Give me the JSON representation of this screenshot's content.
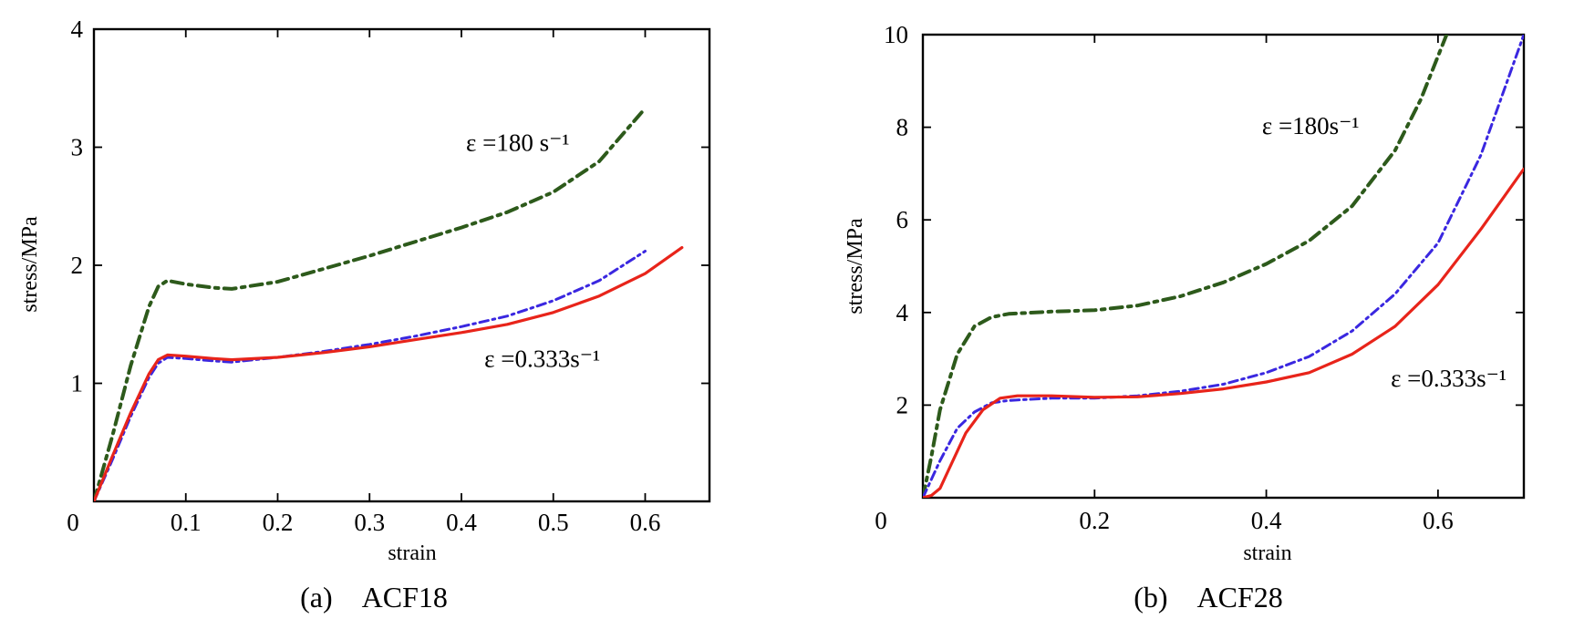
{
  "chart_data": [
    {
      "type": "line",
      "caption": "(a)　ACF18",
      "xlabel": "strain",
      "ylabel": "stress/MPa",
      "xlim": [
        0,
        0.67
      ],
      "ylim": [
        0,
        4
      ],
      "xticks": [
        0.1,
        0.2,
        0.3,
        0.4,
        0.5,
        0.6
      ],
      "xtick_labels": [
        "0.1",
        "0.2",
        "0.3",
        "0.4",
        "0.5",
        "0.6"
      ],
      "yticks": [
        1,
        2,
        3,
        4
      ],
      "ytick_labels": [
        "1",
        "2",
        "3",
        "4"
      ],
      "origin_label": "0",
      "grid": false,
      "annotations": [
        {
          "text": "ε =180 s⁻¹",
          "x": 0.405,
          "y": 2.97
        },
        {
          "text": "ε =0.333s⁻¹",
          "x": 0.425,
          "y": 1.14
        }
      ],
      "series": [
        {
          "color": "#2d5a1b",
          "dash": "dashdot",
          "width": 4,
          "points": [
            [
              0,
              0
            ],
            [
              0.02,
              0.55
            ],
            [
              0.04,
              1.15
            ],
            [
              0.06,
              1.65
            ],
            [
              0.07,
              1.82
            ],
            [
              0.08,
              1.87
            ],
            [
              0.1,
              1.84
            ],
            [
              0.13,
              1.81
            ],
            [
              0.15,
              1.8
            ],
            [
              0.2,
              1.86
            ],
            [
              0.25,
              1.97
            ],
            [
              0.3,
              2.08
            ],
            [
              0.35,
              2.2
            ],
            [
              0.4,
              2.32
            ],
            [
              0.45,
              2.45
            ],
            [
              0.5,
              2.62
            ],
            [
              0.55,
              2.88
            ],
            [
              0.6,
              3.33
            ]
          ]
        },
        {
          "color": "#3a27e0",
          "dash": "dashdot",
          "width": 3,
          "points": [
            [
              0,
              0
            ],
            [
              0.02,
              0.35
            ],
            [
              0.04,
              0.72
            ],
            [
              0.06,
              1.05
            ],
            [
              0.07,
              1.17
            ],
            [
              0.08,
              1.22
            ],
            [
              0.1,
              1.21
            ],
            [
              0.13,
              1.19
            ],
            [
              0.15,
              1.18
            ],
            [
              0.2,
              1.22
            ],
            [
              0.25,
              1.27
            ],
            [
              0.3,
              1.33
            ],
            [
              0.35,
              1.4
            ],
            [
              0.4,
              1.48
            ],
            [
              0.45,
              1.57
            ],
            [
              0.5,
              1.7
            ],
            [
              0.55,
              1.87
            ],
            [
              0.6,
              2.12
            ]
          ]
        },
        {
          "color": "#e8241a",
          "dash": "solid",
          "width": 3.2,
          "points": [
            [
              0,
              0
            ],
            [
              0.02,
              0.38
            ],
            [
              0.04,
              0.75
            ],
            [
              0.06,
              1.08
            ],
            [
              0.07,
              1.2
            ],
            [
              0.08,
              1.24
            ],
            [
              0.1,
              1.23
            ],
            [
              0.13,
              1.21
            ],
            [
              0.15,
              1.2
            ],
            [
              0.2,
              1.22
            ],
            [
              0.25,
              1.26
            ],
            [
              0.3,
              1.31
            ],
            [
              0.35,
              1.37
            ],
            [
              0.4,
              1.43
            ],
            [
              0.45,
              1.5
            ],
            [
              0.5,
              1.6
            ],
            [
              0.55,
              1.74
            ],
            [
              0.6,
              1.93
            ],
            [
              0.64,
              2.15
            ]
          ]
        }
      ]
    },
    {
      "type": "line",
      "caption": "(b)　ACF28",
      "xlabel": "strain",
      "ylabel": "stress/MPa",
      "xlim": [
        0,
        0.7
      ],
      "ylim": [
        0,
        10
      ],
      "xticks": [
        0.2,
        0.4,
        0.6
      ],
      "xtick_labels": [
        "0.2",
        "0.4",
        "0.6"
      ],
      "yticks": [
        2,
        4,
        6,
        8,
        10
      ],
      "ytick_labels": [
        "2",
        "4",
        "6",
        "8",
        "10"
      ],
      "origin_label": "0",
      "grid": false,
      "annotations": [
        {
          "text": "ε =180s⁻¹",
          "x": 0.395,
          "y": 7.85
        },
        {
          "text": "ε =0.333s⁻¹",
          "x": 0.545,
          "y": 2.4
        }
      ],
      "series": [
        {
          "color": "#2d5a1b",
          "dash": "dashdot",
          "width": 4,
          "points": [
            [
              0,
              0
            ],
            [
              0.01,
              0.9
            ],
            [
              0.02,
              1.9
            ],
            [
              0.04,
              3.1
            ],
            [
              0.06,
              3.7
            ],
            [
              0.08,
              3.9
            ],
            [
              0.1,
              3.97
            ],
            [
              0.15,
              4.02
            ],
            [
              0.2,
              4.05
            ],
            [
              0.25,
              4.15
            ],
            [
              0.3,
              4.35
            ],
            [
              0.35,
              4.65
            ],
            [
              0.4,
              5.05
            ],
            [
              0.45,
              5.55
            ],
            [
              0.5,
              6.3
            ],
            [
              0.55,
              7.5
            ],
            [
              0.58,
              8.6
            ],
            [
              0.61,
              10
            ]
          ]
        },
        {
          "color": "#3a27e0",
          "dash": "dashdot",
          "width": 3,
          "points": [
            [
              0,
              0
            ],
            [
              0.02,
              0.8
            ],
            [
              0.04,
              1.5
            ],
            [
              0.06,
              1.85
            ],
            [
              0.08,
              2.05
            ],
            [
              0.1,
              2.1
            ],
            [
              0.15,
              2.15
            ],
            [
              0.2,
              2.15
            ],
            [
              0.25,
              2.2
            ],
            [
              0.3,
              2.3
            ],
            [
              0.35,
              2.45
            ],
            [
              0.4,
              2.7
            ],
            [
              0.45,
              3.05
            ],
            [
              0.5,
              3.6
            ],
            [
              0.55,
              4.4
            ],
            [
              0.6,
              5.5
            ],
            [
              0.65,
              7.4
            ],
            [
              0.7,
              10
            ]
          ]
        },
        {
          "color": "#e8241a",
          "dash": "solid",
          "width": 3.2,
          "points": [
            [
              0,
              0
            ],
            [
              0.01,
              0.05
            ],
            [
              0.02,
              0.2
            ],
            [
              0.03,
              0.6
            ],
            [
              0.05,
              1.4
            ],
            [
              0.07,
              1.9
            ],
            [
              0.09,
              2.15
            ],
            [
              0.11,
              2.2
            ],
            [
              0.15,
              2.2
            ],
            [
              0.2,
              2.17
            ],
            [
              0.25,
              2.18
            ],
            [
              0.3,
              2.25
            ],
            [
              0.35,
              2.35
            ],
            [
              0.4,
              2.5
            ],
            [
              0.45,
              2.7
            ],
            [
              0.5,
              3.1
            ],
            [
              0.55,
              3.7
            ],
            [
              0.6,
              4.6
            ],
            [
              0.65,
              5.8
            ],
            [
              0.7,
              7.1
            ]
          ]
        }
      ]
    }
  ]
}
